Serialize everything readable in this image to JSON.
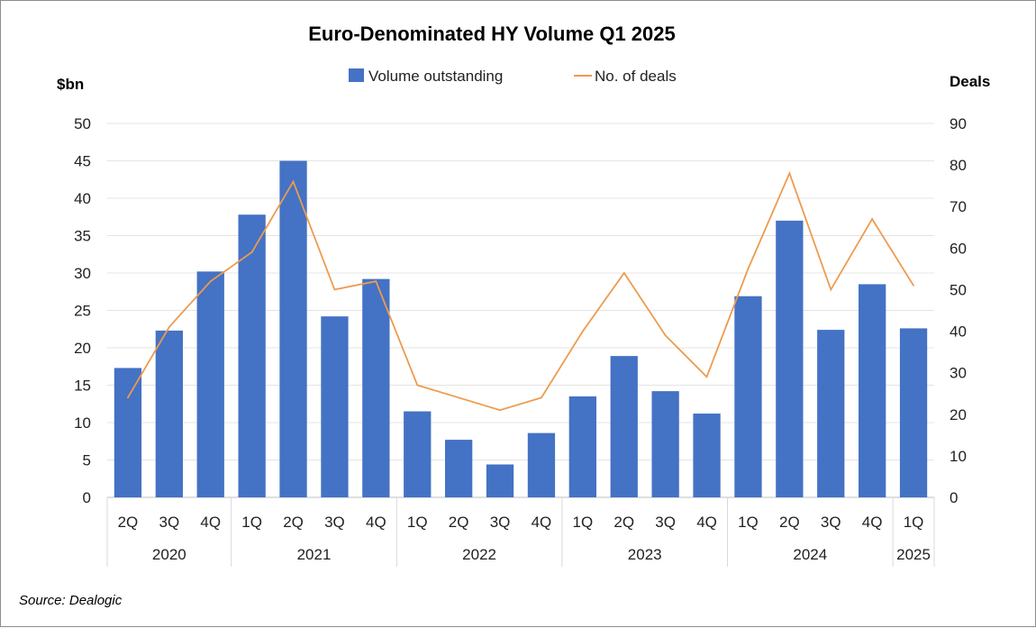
{
  "chart_data": {
    "type": "bar",
    "title": "Euro-Denominated HY Volume Q1 2025",
    "ylabel_left": "$bn",
    "ylabel_right": "Deals",
    "ylim_left": [
      0,
      50
    ],
    "ylim_right": [
      0,
      90
    ],
    "yticks_left": [
      "0",
      "5",
      "10",
      "15",
      "20",
      "25",
      "30",
      "35",
      "40",
      "45",
      "50"
    ],
    "yticks_right": [
      "0",
      "10",
      "20",
      "30",
      "40",
      "50",
      "60",
      "70",
      "80",
      "90"
    ],
    "categories": [
      "2Q",
      "3Q",
      "4Q",
      "1Q",
      "2Q",
      "3Q",
      "4Q",
      "1Q",
      "2Q",
      "3Q",
      "4Q",
      "1Q",
      "2Q",
      "3Q",
      "4Q",
      "1Q",
      "2Q",
      "3Q",
      "4Q",
      "1Q"
    ],
    "year_groups": [
      {
        "label": "2020",
        "count": 3
      },
      {
        "label": "2021",
        "count": 4
      },
      {
        "label": "2022",
        "count": 4
      },
      {
        "label": "2023",
        "count": 4
      },
      {
        "label": "2024",
        "count": 4
      },
      {
        "label": "2025",
        "count": 1
      }
    ],
    "series": [
      {
        "name": "Volume outstanding",
        "type": "bar",
        "axis": "left",
        "color": "#4472c4",
        "values": [
          17.3,
          22.3,
          30.2,
          37.8,
          45.0,
          24.2,
          29.2,
          11.5,
          7.7,
          4.4,
          8.6,
          13.5,
          18.9,
          14.2,
          11.2,
          26.9,
          37.0,
          22.4,
          28.5,
          22.6
        ]
      },
      {
        "name": "No. of deals",
        "type": "line",
        "axis": "right",
        "color": "#ed9b4f",
        "values": [
          24,
          41,
          52,
          59,
          76,
          50,
          52,
          27,
          24,
          21,
          24,
          40,
          54,
          39,
          29,
          55,
          78,
          50,
          67,
          51
        ]
      }
    ],
    "grid": true,
    "legend": "top-center"
  },
  "source": "Source: Dealogic"
}
